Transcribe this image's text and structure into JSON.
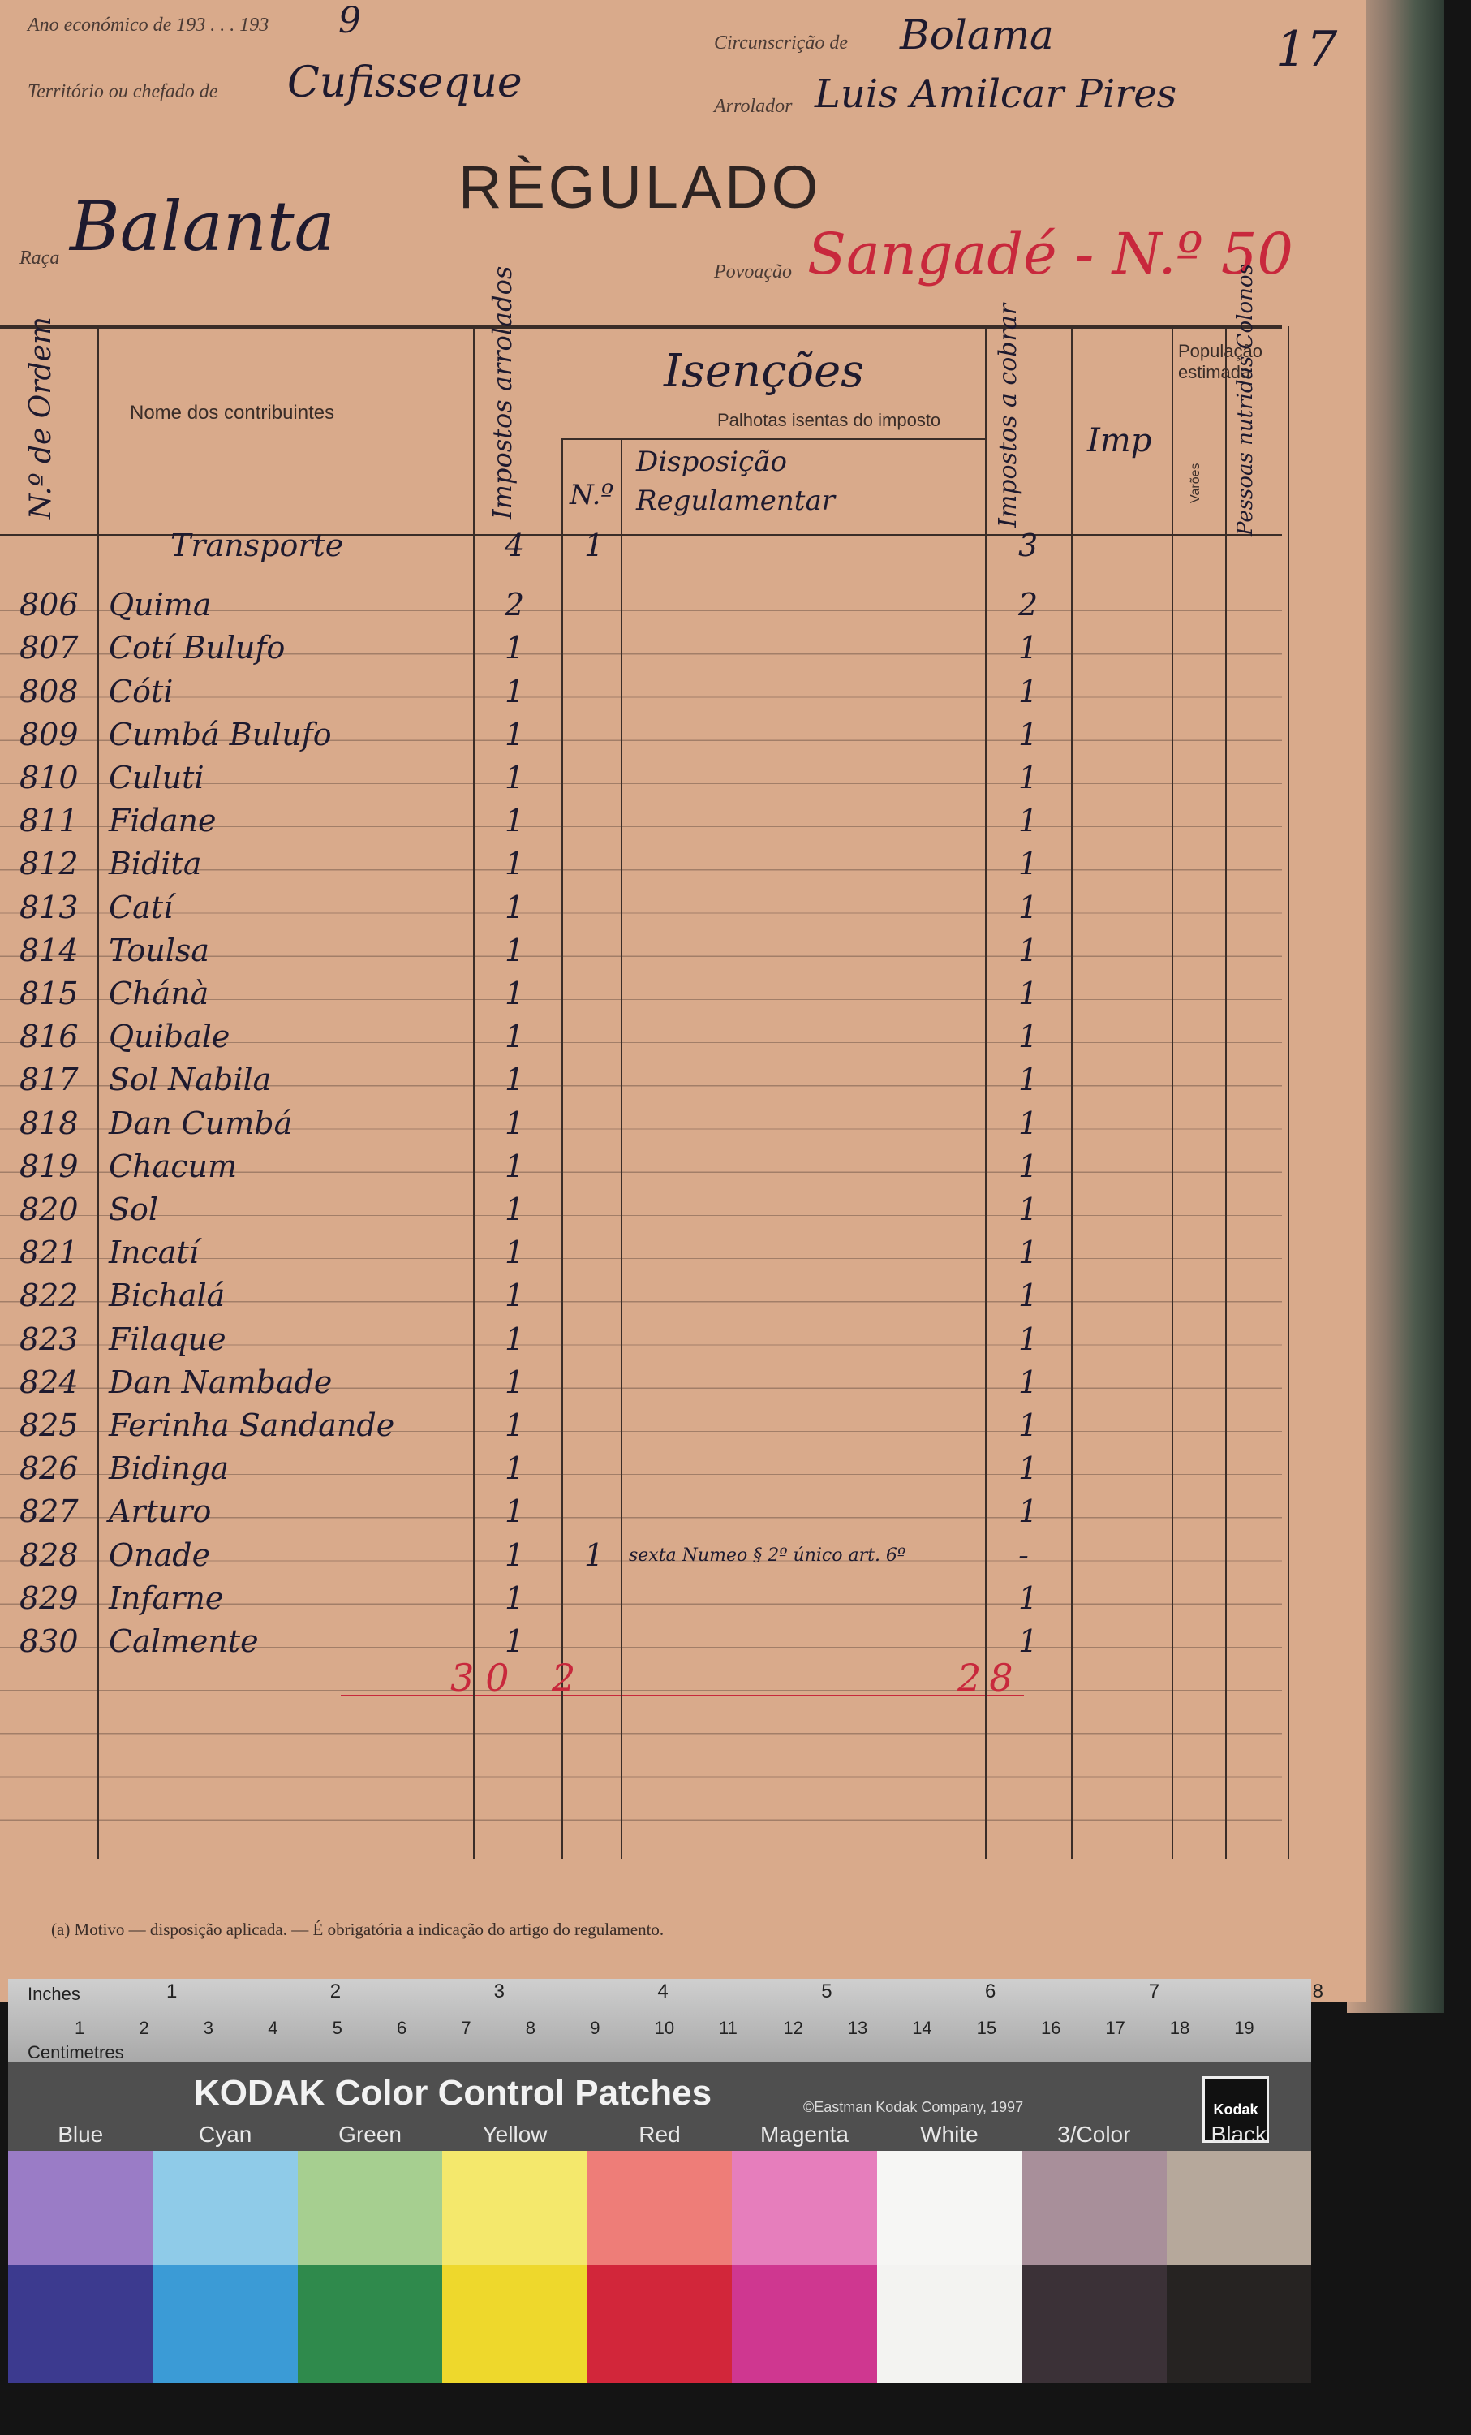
{
  "header": {
    "fiscal_year": {
      "label": "Ano económico de 193 . . . 193",
      "value": "9"
    },
    "territory": {
      "label": "Território ou chefado de",
      "value": "Cufisseque"
    },
    "circumscription": {
      "label": "Circunscrição de",
      "value": "Bolama"
    },
    "enumerator": {
      "label": "Arrolador",
      "value": "Luis Amilcar Pires"
    },
    "page_number": "17",
    "title": "RÈGULADO",
    "race": {
      "label": "Raça",
      "value": "Balanta"
    },
    "settlement": {
      "label": "Povoação",
      "value": "Sangadé - N.º 50"
    }
  },
  "table": {
    "columns": {
      "order_number": "N.º de Ordem",
      "name": "Nome dos contribuintes",
      "taxes_listed": "Impostos arrolados",
      "exemptions": "Isenções",
      "exempt_huts": "Palhotas isentas do imposto",
      "exempt_number": "N.º",
      "regulation": "Disposição Regulamentar",
      "taxes_to_collect": "Impostos a cobrar",
      "imp": "Imp",
      "population": "População estimada",
      "males": "Varões",
      "others": "Pessoas nutridas Colonos"
    },
    "rows": [
      [
        null,
        "Transporte",
        4,
        1,
        null,
        3
      ],
      [
        806,
        "Quima",
        2,
        null,
        null,
        2
      ],
      [
        807,
        "Cotí Bulufo",
        1,
        null,
        null,
        1
      ],
      [
        808,
        "Cóti",
        1,
        null,
        null,
        1
      ],
      [
        809,
        "Cumbá Bulufo",
        1,
        null,
        null,
        1
      ],
      [
        810,
        "Culuti",
        1,
        null,
        null,
        1
      ],
      [
        811,
        "Fidane",
        1,
        null,
        null,
        1
      ],
      [
        812,
        "Bidita",
        1,
        null,
        null,
        1
      ],
      [
        813,
        "Catí",
        1,
        null,
        null,
        1
      ],
      [
        814,
        "Toulsa",
        1,
        null,
        null,
        1
      ],
      [
        815,
        "Chánà",
        1,
        null,
        null,
        1
      ],
      [
        816,
        "Quibale",
        1,
        null,
        null,
        1
      ],
      [
        817,
        "Sol Nabila",
        1,
        null,
        null,
        1
      ],
      [
        818,
        "Dan Cumbá",
        1,
        null,
        null,
        1
      ],
      [
        819,
        "Chacum",
        1,
        null,
        null,
        1
      ],
      [
        820,
        "Sol",
        1,
        null,
        null,
        1
      ],
      [
        821,
        "Incatí",
        1,
        null,
        null,
        1
      ],
      [
        822,
        "Bichalá",
        1,
        null,
        null,
        1
      ],
      [
        823,
        "Filaque",
        1,
        null,
        null,
        1
      ],
      [
        824,
        "Dan Nambade",
        1,
        null,
        null,
        1
      ],
      [
        825,
        "Ferinha Sandande",
        1,
        null,
        null,
        1
      ],
      [
        826,
        "Bidinga",
        1,
        null,
        null,
        1
      ],
      [
        827,
        "Arturo",
        1,
        null,
        null,
        1
      ],
      [
        828,
        "Onade",
        1,
        1,
        "sexta Numeo § 2º único art. 6º",
        "-"
      ],
      [
        829,
        "Infarne",
        1,
        null,
        null,
        1
      ],
      [
        830,
        "Calmente",
        1,
        null,
        null,
        1
      ]
    ],
    "totals": {
      "taxes_listed": 30,
      "exempt": 2,
      "taxes_to_collect": 28
    }
  },
  "footnote": "(a) Motivo — disposição aplicada. — É obrigatória a indicação do artigo do regulamento.",
  "color_card": {
    "inches_label": "Inches",
    "inch_ticks": [
      1,
      2,
      3,
      4,
      5,
      6,
      7,
      8
    ],
    "cm_label": "Centimetres",
    "cm_ticks": [
      1,
      2,
      3,
      4,
      5,
      6,
      7,
      8,
      9,
      10,
      11,
      12,
      13,
      14,
      15,
      16,
      17,
      18,
      19
    ],
    "title": "KODAK Color Control Patches",
    "copyright": "©Eastman Kodak Company, 1997",
    "logo": "Kodak",
    "patches": [
      {
        "name": "Blue",
        "light": "#9a7cc6",
        "dark": "#3c3a8f"
      },
      {
        "name": "Cyan",
        "light": "#8fcbe8",
        "dark": "#3b9bd6"
      },
      {
        "name": "Green",
        "light": "#a6cf90",
        "dark": "#2f8a4c"
      },
      {
        "name": "Yellow",
        "light": "#f4e86c",
        "dark": "#eed82c"
      },
      {
        "name": "Red",
        "light": "#ee7d78",
        "dark": "#d2263a"
      },
      {
        "name": "Magenta",
        "light": "#e67ebc",
        "dark": "#cf3790"
      },
      {
        "name": "White",
        "light": "#f6f6f4",
        "dark": "#f3f3f1"
      },
      {
        "name": "3/Color",
        "light": "#a88f9a",
        "dark": "#3b3137"
      },
      {
        "name": "Black",
        "light": "#b6a89b",
        "dark": "#262322"
      }
    ]
  }
}
